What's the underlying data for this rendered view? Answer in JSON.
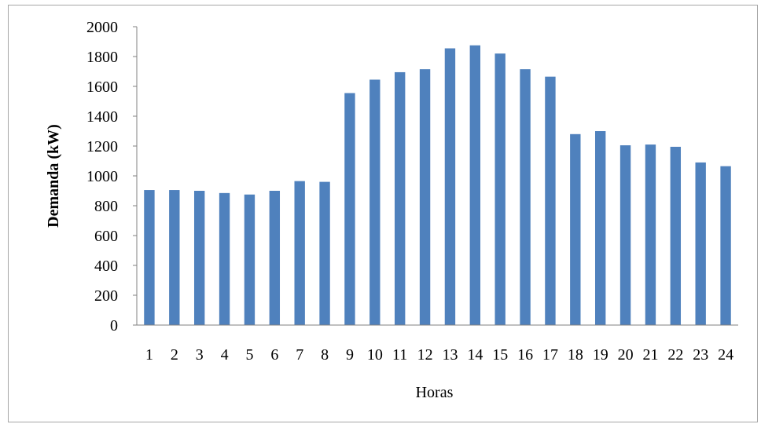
{
  "chart_data": {
    "type": "bar",
    "title": "",
    "xlabel": "Horas",
    "ylabel": "Demanda (kW)",
    "ylim": [
      0,
      2000
    ],
    "yticks": [
      0,
      200,
      400,
      600,
      800,
      1000,
      1200,
      1400,
      1600,
      1800,
      2000
    ],
    "categories": [
      "1",
      "2",
      "3",
      "4",
      "5",
      "6",
      "7",
      "8",
      "9",
      "10",
      "11",
      "12",
      "13",
      "14",
      "15",
      "16",
      "17",
      "18",
      "19",
      "20",
      "21",
      "22",
      "23",
      "24"
    ],
    "values": [
      905,
      905,
      900,
      885,
      875,
      900,
      965,
      960,
      1555,
      1645,
      1695,
      1715,
      1855,
      1875,
      1820,
      1715,
      1665,
      1280,
      1300,
      1205,
      1210,
      1195,
      1090,
      1065
    ],
    "bar_color": "#4f81bd",
    "grid": false,
    "legend": "none"
  }
}
